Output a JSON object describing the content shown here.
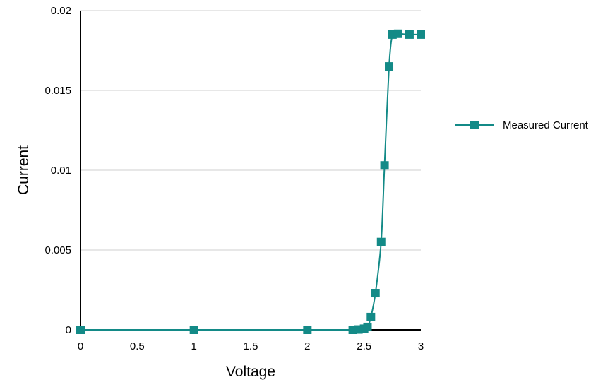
{
  "chart_data": {
    "type": "line",
    "title": "",
    "xlabel": "Voltage",
    "ylabel": "Current",
    "xlim": [
      0,
      3
    ],
    "ylim": [
      0,
      0.02
    ],
    "x_ticks": [
      "0",
      "0.5",
      "1",
      "1.5",
      "2",
      "2.5",
      "3"
    ],
    "x_tick_values": [
      0,
      0.5,
      1,
      1.5,
      2,
      2.5,
      3
    ],
    "y_ticks": [
      "0",
      "0.005",
      "0.01",
      "0.015",
      "0.02"
    ],
    "y_tick_values": [
      0,
      0.005,
      0.01,
      0.015,
      0.02
    ],
    "grid": "horizontal",
    "legend_position": "right",
    "series": [
      {
        "name": "Measured Current",
        "color": "#138a87",
        "marker": "square",
        "points": [
          {
            "x": 0,
            "y": 0
          },
          {
            "x": 1,
            "y": 0
          },
          {
            "x": 2,
            "y": 0
          },
          {
            "x": 2.4,
            "y": 0
          },
          {
            "x": 2.45,
            "y": 2e-05
          },
          {
            "x": 2.5,
            "y": 7e-05
          },
          {
            "x": 2.53,
            "y": 0.00018
          },
          {
            "x": 2.56,
            "y": 0.0008
          },
          {
            "x": 2.6,
            "y": 0.0023
          },
          {
            "x": 2.65,
            "y": 0.0055
          },
          {
            "x": 2.68,
            "y": 0.0103
          },
          {
            "x": 2.72,
            "y": 0.0165
          },
          {
            "x": 2.75,
            "y": 0.0185
          },
          {
            "x": 2.8,
            "y": 0.01855
          },
          {
            "x": 2.9,
            "y": 0.0185
          },
          {
            "x": 3,
            "y": 0.0185
          }
        ]
      }
    ]
  }
}
